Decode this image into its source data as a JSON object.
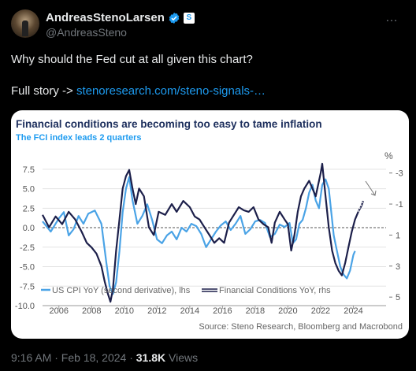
{
  "tweet": {
    "author_name": "AndreasStenoLarsen",
    "handle": "@AndreasSteno",
    "badge_symbol": "S",
    "more_icon": "…",
    "text_line1": "Why should the Fed cut at all given this chart?",
    "text_line2_prefix": "Full story -> ",
    "link_text": "stenoresearch.com/steno-signals-…",
    "timestamp": "9:16 AM · Feb 18, 2024 · ",
    "views_count": "31.8K",
    "views_label": " Views"
  },
  "colors": {
    "accent": "#1d9bf0",
    "cpi_series": "#4aa3e6",
    "fci_series": "#1c1f4a",
    "title": "#1c2e5c"
  },
  "chart_data": {
    "type": "line",
    "title": "Financial conditions are becoming too easy to tame inflation",
    "subtitle": "The FCI index leads 2 quarters",
    "source": "Source: Steno Research, Bloomberg and Macrobond",
    "right_unit": "%",
    "left_ticks": [
      "7.5",
      "5.0",
      "2.5",
      "0.0",
      "-2.5",
      "-5.0",
      "-7.5",
      "-10.0"
    ],
    "left_tick_values": [
      7.5,
      5.0,
      2.5,
      0.0,
      -2.5,
      -5.0,
      -7.5,
      -10.0
    ],
    "right_ticks": [
      "-3",
      "-1",
      "1",
      "3",
      "5"
    ],
    "right_tick_values": [
      -3,
      -1,
      1,
      3,
      5
    ],
    "x_ticks": [
      "2006",
      "2008",
      "2010",
      "2012",
      "2014",
      "2016",
      "2018",
      "2020",
      "2022",
      "2024"
    ],
    "x_tick_values": [
      2006,
      2008,
      2010,
      2012,
      2014,
      2016,
      2018,
      2020,
      2022,
      2024
    ],
    "xlim": [
      2005,
      2026
    ],
    "ylim_left": [
      -10,
      9
    ],
    "ylim_right": [
      5.55,
      -4
    ],
    "series": [
      {
        "name": "US CPI YoY (second derivative), lhs",
        "axis": "left",
        "points": [
          [
            2005.0,
            0.8
          ],
          [
            2005.5,
            -0.5
          ],
          [
            2006.0,
            1.2
          ],
          [
            2006.3,
            2.0
          ],
          [
            2006.6,
            -1.0
          ],
          [
            2006.9,
            -0.2
          ],
          [
            2007.2,
            1.5
          ],
          [
            2007.5,
            0.5
          ],
          [
            2007.8,
            1.8
          ],
          [
            2008.2,
            2.2
          ],
          [
            2008.6,
            0.5
          ],
          [
            2008.9,
            -4.5
          ],
          [
            2009.1,
            -7.5
          ],
          [
            2009.3,
            -8.5
          ],
          [
            2009.5,
            -7.0
          ],
          [
            2009.7,
            -3.0
          ],
          [
            2009.9,
            2.0
          ],
          [
            2010.1,
            5.0
          ],
          [
            2010.3,
            6.5
          ],
          [
            2010.5,
            3.5
          ],
          [
            2010.8,
            0.5
          ],
          [
            2011.1,
            1.5
          ],
          [
            2011.4,
            3.0
          ],
          [
            2011.7,
            1.0
          ],
          [
            2012.0,
            -1.5
          ],
          [
            2012.3,
            -2.0
          ],
          [
            2012.6,
            -1.0
          ],
          [
            2012.9,
            -0.5
          ],
          [
            2013.2,
            -1.5
          ],
          [
            2013.5,
            0.0
          ],
          [
            2013.8,
            -0.5
          ],
          [
            2014.1,
            0.5
          ],
          [
            2014.4,
            0.2
          ],
          [
            2014.7,
            -0.8
          ],
          [
            2015.0,
            -2.5
          ],
          [
            2015.3,
            -1.5
          ],
          [
            2015.6,
            -0.5
          ],
          [
            2015.9,
            0.3
          ],
          [
            2016.2,
            0.8
          ],
          [
            2016.5,
            -0.3
          ],
          [
            2016.8,
            0.5
          ],
          [
            2017.1,
            1.5
          ],
          [
            2017.4,
            -0.8
          ],
          [
            2017.7,
            -0.2
          ],
          [
            2018.0,
            0.8
          ],
          [
            2018.3,
            1.0
          ],
          [
            2018.6,
            0.6
          ],
          [
            2018.9,
            -1.2
          ],
          [
            2019.2,
            -0.8
          ],
          [
            2019.5,
            0.4
          ],
          [
            2019.8,
            0.1
          ],
          [
            2020.1,
            0.6
          ],
          [
            2020.3,
            -2.0
          ],
          [
            2020.5,
            -1.5
          ],
          [
            2020.7,
            0.5
          ],
          [
            2020.9,
            1.0
          ],
          [
            2021.1,
            2.5
          ],
          [
            2021.3,
            4.5
          ],
          [
            2021.5,
            5.5
          ],
          [
            2021.7,
            3.5
          ],
          [
            2021.9,
            2.5
          ],
          [
            2022.1,
            5.5
          ],
          [
            2022.3,
            6.2
          ],
          [
            2022.5,
            5.0
          ],
          [
            2022.6,
            3.0
          ],
          [
            2022.8,
            -1.0
          ],
          [
            2023.0,
            -3.0
          ],
          [
            2023.2,
            -5.0
          ],
          [
            2023.4,
            -6.0
          ],
          [
            2023.6,
            -6.5
          ],
          [
            2023.8,
            -5.5
          ],
          [
            2024.0,
            -3.5
          ],
          [
            2024.1,
            -3.0
          ]
        ]
      },
      {
        "name": "Financial Conditions YoY, rhs",
        "axis": "right",
        "points": [
          [
            2005.0,
            -0.3
          ],
          [
            2005.4,
            0.5
          ],
          [
            2005.8,
            -0.2
          ],
          [
            2006.2,
            0.3
          ],
          [
            2006.6,
            -0.5
          ],
          [
            2007.0,
            0.0
          ],
          [
            2007.4,
            0.8
          ],
          [
            2007.7,
            1.5
          ],
          [
            2008.0,
            1.8
          ],
          [
            2008.3,
            2.2
          ],
          [
            2008.6,
            3.0
          ],
          [
            2008.8,
            4.0
          ],
          [
            2009.0,
            4.8
          ],
          [
            2009.15,
            5.3
          ],
          [
            2009.3,
            4.5
          ],
          [
            2009.5,
            2.0
          ],
          [
            2009.7,
            0.0
          ],
          [
            2009.9,
            -2.0
          ],
          [
            2010.1,
            -2.8
          ],
          [
            2010.3,
            -3.2
          ],
          [
            2010.5,
            -2.0
          ],
          [
            2010.7,
            -1.0
          ],
          [
            2010.9,
            -2.0
          ],
          [
            2011.2,
            -1.5
          ],
          [
            2011.5,
            0.5
          ],
          [
            2011.8,
            1.0
          ],
          [
            2012.1,
            -0.5
          ],
          [
            2012.5,
            -0.3
          ],
          [
            2012.9,
            -1.0
          ],
          [
            2013.2,
            -0.5
          ],
          [
            2013.6,
            -1.2
          ],
          [
            2014.0,
            -0.8
          ],
          [
            2014.3,
            -0.2
          ],
          [
            2014.6,
            0.0
          ],
          [
            2014.9,
            0.5
          ],
          [
            2015.2,
            1.0
          ],
          [
            2015.5,
            1.5
          ],
          [
            2015.8,
            1.2
          ],
          [
            2016.1,
            1.5
          ],
          [
            2016.4,
            0.2
          ],
          [
            2016.7,
            -0.3
          ],
          [
            2017.0,
            -0.8
          ],
          [
            2017.3,
            -0.6
          ],
          [
            2017.6,
            -0.5
          ],
          [
            2017.9,
            -0.8
          ],
          [
            2018.2,
            0.0
          ],
          [
            2018.5,
            0.3
          ],
          [
            2018.8,
            0.5
          ],
          [
            2019.0,
            1.5
          ],
          [
            2019.2,
            0.2
          ],
          [
            2019.5,
            -0.5
          ],
          [
            2019.8,
            0.0
          ],
          [
            2020.0,
            0.3
          ],
          [
            2020.2,
            2.0
          ],
          [
            2020.4,
            1.0
          ],
          [
            2020.6,
            -0.5
          ],
          [
            2020.8,
            -1.5
          ],
          [
            2021.0,
            -2.0
          ],
          [
            2021.3,
            -2.5
          ],
          [
            2021.5,
            -2.0
          ],
          [
            2021.7,
            -1.5
          ],
          [
            2021.9,
            -2.5
          ],
          [
            2022.0,
            -3.0
          ],
          [
            2022.1,
            -3.6
          ],
          [
            2022.3,
            -1.5
          ],
          [
            2022.5,
            0.5
          ],
          [
            2022.7,
            2.0
          ],
          [
            2022.9,
            2.8
          ],
          [
            2023.1,
            3.3
          ],
          [
            2023.3,
            3.6
          ],
          [
            2023.5,
            2.8
          ],
          [
            2023.7,
            1.8
          ],
          [
            2023.9,
            0.8
          ],
          [
            2024.1,
            0.0
          ],
          [
            2024.3,
            -0.5
          ],
          [
            2024.5,
            -0.9
          ],
          [
            2024.6,
            -1.2
          ]
        ]
      }
    ]
  }
}
